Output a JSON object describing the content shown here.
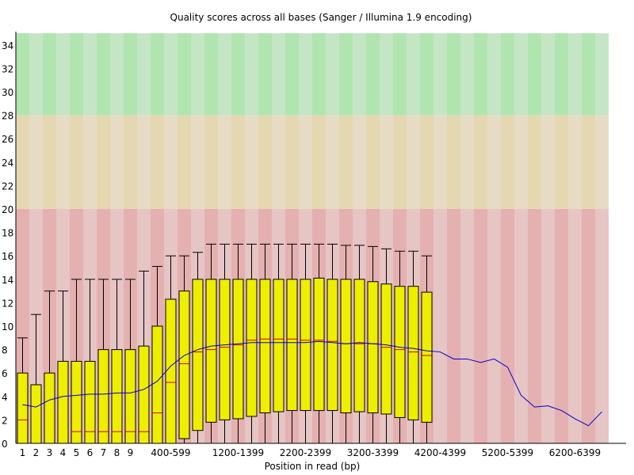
{
  "chart_data": {
    "type": "box",
    "title": "Quality scores across all bases (Sanger / Illumina 1.9 encoding)",
    "xlabel": "Position in read (bp)",
    "ylabel": "",
    "ylim": [
      0,
      35
    ],
    "y_ticks": [
      0,
      2,
      4,
      6,
      8,
      10,
      12,
      14,
      16,
      18,
      20,
      22,
      24,
      26,
      28,
      30,
      32,
      34
    ],
    "x_tick_labels": [
      {
        "index": 0,
        "label": "1"
      },
      {
        "index": 1,
        "label": "2"
      },
      {
        "index": 2,
        "label": "3"
      },
      {
        "index": 3,
        "label": "4"
      },
      {
        "index": 4,
        "label": "5"
      },
      {
        "index": 5,
        "label": "6"
      },
      {
        "index": 6,
        "label": "7"
      },
      {
        "index": 7,
        "label": "8"
      },
      {
        "index": 8,
        "label": "9"
      },
      {
        "index": 11,
        "label": "400-599"
      },
      {
        "index": 16,
        "label": "1200-1399"
      },
      {
        "index": 21,
        "label": "2200-2399"
      },
      {
        "index": 26,
        "label": "3200-3399"
      },
      {
        "index": 31,
        "label": "4200-4399"
      },
      {
        "index": 36,
        "label": "5200-5399"
      },
      {
        "index": 41,
        "label": "6200-6399"
      }
    ],
    "quality_bands": [
      {
        "name": "good",
        "from": 28,
        "to": 35,
        "colors": [
          "#b0e5b0",
          "#c5e6c5"
        ]
      },
      {
        "name": "reasonable",
        "from": 20,
        "to": 28,
        "colors": [
          "#e5d8b0",
          "#e6dcc5"
        ]
      },
      {
        "name": "poor",
        "from": 0,
        "to": 20,
        "colors": [
          "#e5b0b0",
          "#e6c5c5"
        ]
      }
    ],
    "series": [
      {
        "name": "box",
        "color": "#eeee00"
      },
      {
        "name": "median",
        "color": "#cc0000"
      },
      {
        "name": "mean",
        "color": "#0000cc"
      }
    ],
    "columns": [
      {
        "q90": 9,
        "q75": 6,
        "median": 2,
        "q25": 0,
        "q10": 0,
        "mean": 3.3
      },
      {
        "q90": 11,
        "q75": 5,
        "median": 0,
        "q25": 0,
        "q10": 0,
        "mean": 3.1
      },
      {
        "q90": 13,
        "q75": 6,
        "median": 0,
        "q25": 0,
        "q10": 0,
        "mean": 3.7
      },
      {
        "q90": 13,
        "q75": 7,
        "median": 0,
        "q25": 0,
        "q10": 0,
        "mean": 4.0
      },
      {
        "q90": 14,
        "q75": 7,
        "median": 1,
        "q25": 0,
        "q10": 0,
        "mean": 4.1
      },
      {
        "q90": 14,
        "q75": 7,
        "median": 1,
        "q25": 0,
        "q10": 0,
        "mean": 4.2
      },
      {
        "q90": 14,
        "q75": 8,
        "median": 1,
        "q25": 0,
        "q10": 0,
        "mean": 4.2
      },
      {
        "q90": 14,
        "q75": 8,
        "median": 1,
        "q25": 0,
        "q10": 0,
        "mean": 4.3
      },
      {
        "q90": 14,
        "q75": 8,
        "median": 1,
        "q25": 0,
        "q10": 0,
        "mean": 4.3
      },
      {
        "q90": 14.7,
        "q75": 8.3,
        "median": 1,
        "q25": 0,
        "q10": 0,
        "mean": 4.6
      },
      {
        "q90": 15.1,
        "q75": 10,
        "median": 2.6,
        "q25": 0,
        "q10": 0,
        "mean": 5.3
      },
      {
        "q90": 16,
        "q75": 12.3,
        "median": 5.2,
        "q25": 0,
        "q10": 0,
        "mean": 6.6
      },
      {
        "q90": 16,
        "q75": 13,
        "median": 6.8,
        "q25": 0.4,
        "q10": 0,
        "mean": 7.5
      },
      {
        "q90": 16.3,
        "q75": 14,
        "median": 7.8,
        "q25": 1.1,
        "q10": 0,
        "mean": 8.0
      },
      {
        "q90": 17,
        "q75": 14,
        "median": 8.0,
        "q25": 1.8,
        "q10": 0,
        "mean": 8.3
      },
      {
        "q90": 17,
        "q75": 14,
        "median": 8.2,
        "q25": 2.0,
        "q10": 0,
        "mean": 8.4
      },
      {
        "q90": 17,
        "q75": 14,
        "median": 8.4,
        "q25": 2.1,
        "q10": 0,
        "mean": 8.5
      },
      {
        "q90": 17,
        "q75": 14,
        "median": 8.8,
        "q25": 2.3,
        "q10": 0,
        "mean": 8.6
      },
      {
        "q90": 17,
        "q75": 14,
        "median": 8.9,
        "q25": 2.6,
        "q10": 0,
        "mean": 8.6
      },
      {
        "q90": 17,
        "q75": 14,
        "median": 8.9,
        "q25": 2.7,
        "q10": 0,
        "mean": 8.6
      },
      {
        "q90": 17,
        "q75": 14,
        "median": 8.9,
        "q25": 2.8,
        "q10": 0,
        "mean": 8.6
      },
      {
        "q90": 17,
        "q75": 14,
        "median": 8.8,
        "q25": 2.8,
        "q10": 0,
        "mean": 8.6
      },
      {
        "q90": 17,
        "q75": 14.1,
        "median": 8.8,
        "q25": 2.8,
        "q10": 0,
        "mean": 8.7
      },
      {
        "q90": 17,
        "q75": 14,
        "median": 8.7,
        "q25": 2.8,
        "q10": 0,
        "mean": 8.6
      },
      {
        "q90": 16.9,
        "q75": 14,
        "median": 8.5,
        "q25": 2.6,
        "q10": 0,
        "mean": 8.5
      },
      {
        "q90": 16.9,
        "q75": 14,
        "median": 8.5,
        "q25": 2.7,
        "q10": 0,
        "mean": 8.6
      },
      {
        "q90": 16.8,
        "q75": 13.8,
        "median": 8.5,
        "q25": 2.6,
        "q10": 0,
        "mean": 8.5
      },
      {
        "q90": 16.6,
        "q75": 13.6,
        "median": 8.2,
        "q25": 2.5,
        "q10": 0,
        "mean": 8.4
      },
      {
        "q90": 16.4,
        "q75": 13.4,
        "median": 8.0,
        "q25": 2.2,
        "q10": 0,
        "mean": 8.2
      },
      {
        "q90": 16.4,
        "q75": 13.4,
        "median": 7.8,
        "q25": 2.0,
        "q10": 0,
        "mean": 8.1
      },
      {
        "q90": 16,
        "q75": 12.9,
        "median": 7.5,
        "q25": 1.8,
        "q10": 0,
        "mean": 7.9
      },
      {
        "q90": 0,
        "q75": 0,
        "median": 0,
        "q25": 0,
        "q10": 0,
        "mean": 7.8
      },
      {
        "q90": 0,
        "q75": 0,
        "median": 0,
        "q25": 0,
        "q10": 0,
        "mean": 7.2
      },
      {
        "q90": 0,
        "q75": 0,
        "median": 0,
        "q25": 0,
        "q10": 0,
        "mean": 7.2
      },
      {
        "q90": 0,
        "q75": 0,
        "median": 0,
        "q25": 0,
        "q10": 0,
        "mean": 6.9
      },
      {
        "q90": 0,
        "q75": 0,
        "median": 0,
        "q25": 0,
        "q10": 0,
        "mean": 7.2
      },
      {
        "q90": 0,
        "q75": 0,
        "median": 0,
        "q25": 0,
        "q10": 0,
        "mean": 6.5
      },
      {
        "q90": 0,
        "q75": 0,
        "median": 0,
        "q25": 0,
        "q10": 0,
        "mean": 4.1
      },
      {
        "q90": 0,
        "q75": 0,
        "median": 0,
        "q25": 0,
        "q10": 0,
        "mean": 3.1
      },
      {
        "q90": 0,
        "q75": 0,
        "median": 0,
        "q25": 0,
        "q10": 0,
        "mean": 3.2
      },
      {
        "q90": 0,
        "q75": 0,
        "median": 0,
        "q25": 0,
        "q10": 0,
        "mean": 2.8
      },
      {
        "q90": 0,
        "q75": 0,
        "median": 0,
        "q25": 0,
        "q10": 0,
        "mean": 2.1
      },
      {
        "q90": 0,
        "q75": 0,
        "median": 0,
        "q25": 0,
        "q10": 0,
        "mean": 1.5
      },
      {
        "q90": 0,
        "q75": 0,
        "median": 0,
        "q25": 0,
        "q10": 0,
        "mean": 2.7
      }
    ]
  }
}
